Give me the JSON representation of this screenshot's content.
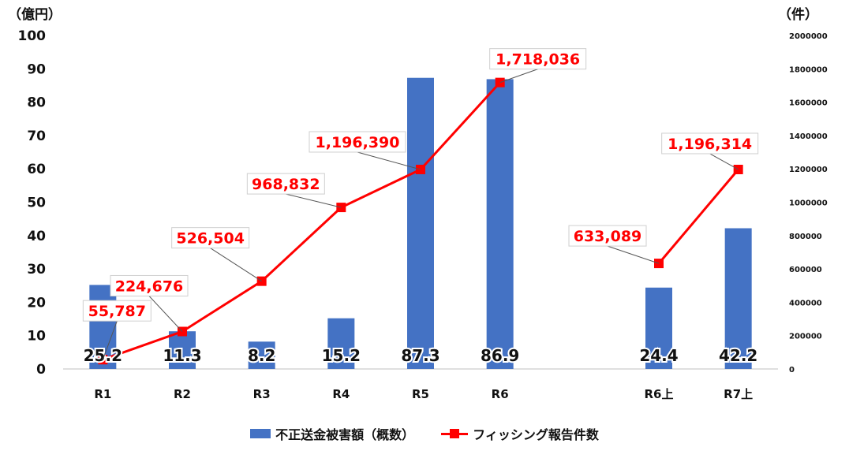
{
  "chart_data": {
    "type": "bar+line",
    "categories": [
      "R1",
      "R2",
      "R3",
      "R4",
      "R5",
      "R6",
      "",
      "R6上",
      "R7上"
    ],
    "series": [
      {
        "name": "不正送金被害額（概数）",
        "type": "bar",
        "axis": "left",
        "values": [
          25.2,
          11.3,
          8.2,
          15.2,
          87.3,
          86.9,
          null,
          24.4,
          42.2
        ],
        "labels": [
          "25.2",
          "11.3",
          "8.2",
          "15.2",
          "87.3",
          "86.9",
          null,
          "24.4",
          "42.2"
        ],
        "color": "#4472C4"
      },
      {
        "name": "フィッシング報告件数",
        "type": "line",
        "axis": "right",
        "values": [
          55787,
          224676,
          526504,
          968832,
          1196390,
          1718036,
          null,
          633089,
          1196314
        ],
        "labels": [
          "55,787",
          "224,676",
          "526,504",
          "968,832",
          "1,196,390",
          "1,718,036",
          null,
          "633,089",
          "1,196,314"
        ],
        "color": "#FF0000"
      }
    ],
    "y_left": {
      "unit_label": "（億円）",
      "ylim": [
        0,
        100
      ],
      "ticks": [
        "0",
        "10",
        "20",
        "30",
        "40",
        "50",
        "60",
        "70",
        "80",
        "90",
        "100"
      ]
    },
    "y_right": {
      "unit_label": "（件）",
      "ylim": [
        0,
        2000000
      ],
      "ticks": [
        "0",
        "200000",
        "400000",
        "600000",
        "800000",
        "1000000",
        "1200000",
        "1400000",
        "1600000",
        "1800000",
        "2000000"
      ]
    },
    "legend": [
      "不正送金被害額（概数）",
      "フィッシング報告件数"
    ],
    "legend_position": "bottom",
    "grid": false
  }
}
